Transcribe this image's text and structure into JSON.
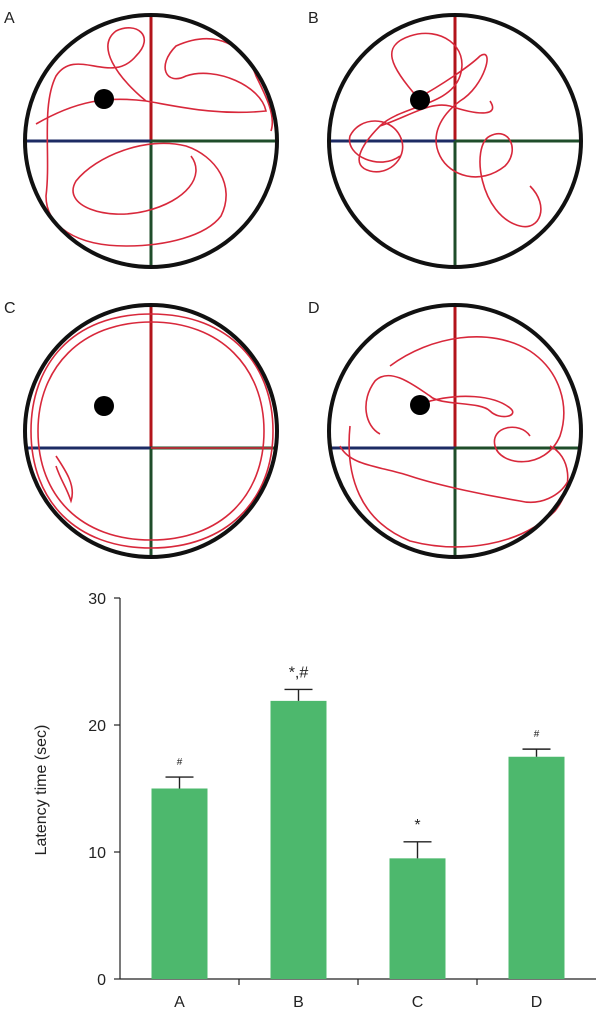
{
  "panels": [
    {
      "label": "A"
    },
    {
      "label": "B"
    },
    {
      "label": "C"
    },
    {
      "label": "D"
    }
  ],
  "colors": {
    "path": "#d8283b",
    "bar": "#4db86d",
    "rim": "#111111",
    "quad_red": "#b3141b",
    "quad_blue": "#1d2b64",
    "quad_green": "#1f4d2a",
    "platform": "#000000"
  },
  "chart_data": {
    "type": "bar",
    "categories": [
      "A",
      "B",
      "C",
      "D"
    ],
    "values": [
      15.0,
      21.9,
      9.5,
      17.5
    ],
    "errors": [
      0.9,
      0.9,
      1.3,
      0.6
    ],
    "annotations": [
      "#",
      "*,#",
      "*",
      "#"
    ],
    "ylabel": "Latency time (sec)",
    "xlabel": "",
    "ylim": [
      0,
      30
    ],
    "yticks": [
      0,
      10,
      20,
      30
    ],
    "grid": false
  }
}
